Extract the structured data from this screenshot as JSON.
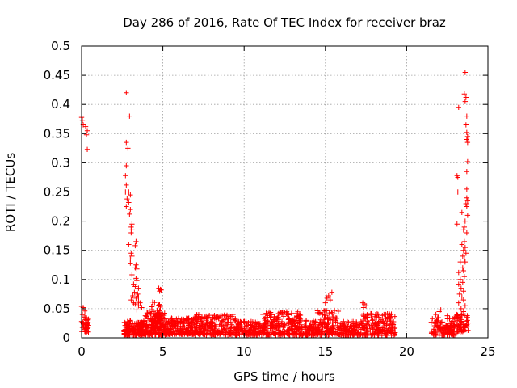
{
  "chart_data": {
    "type": "scatter",
    "title": "Day 286 of 2016, Rate Of TEC Index for receiver braz",
    "xlabel": "GPS time / hours",
    "ylabel": "ROTI / TECUs",
    "xlim": [
      0,
      25
    ],
    "ylim": [
      0,
      0.5
    ],
    "grid": true,
    "xticks": [
      0,
      5,
      10,
      15,
      20,
      25
    ],
    "xtick_labels": [
      "0",
      "5",
      "10",
      "15",
      "20",
      "25"
    ],
    "yticks": [
      0,
      0.05,
      0.1,
      0.15,
      0.2,
      0.25,
      0.3,
      0.35,
      0.4,
      0.45,
      0.5
    ],
    "ytick_labels": [
      "0",
      "0.05",
      "0.1",
      "0.15",
      "0.2",
      "0.25",
      "0.3",
      "0.35",
      "0.4",
      "0.45",
      "0.5"
    ],
    "series": [
      {
        "name": "ROTI",
        "color": "#ff0000",
        "marker": "plus",
        "points": [
          [
            0.0,
            0.378
          ],
          [
            0.05,
            0.373
          ],
          [
            0.1,
            0.365
          ],
          [
            0.25,
            0.362
          ],
          [
            0.35,
            0.355
          ],
          [
            0.3,
            0.348
          ],
          [
            0.35,
            0.323
          ],
          [
            0.0,
            0.054
          ],
          [
            0.1,
            0.052
          ],
          [
            0.2,
            0.046
          ],
          [
            0.05,
            0.04
          ],
          [
            0.15,
            0.035
          ],
          [
            0.3,
            0.03
          ],
          [
            0.0,
            0.028
          ],
          [
            0.1,
            0.025
          ],
          [
            0.2,
            0.022
          ],
          [
            0.35,
            0.024
          ],
          [
            0.4,
            0.018
          ],
          [
            0.25,
            0.012
          ],
          [
            2.75,
            0.42
          ],
          [
            2.95,
            0.38
          ],
          [
            2.75,
            0.335
          ],
          [
            2.85,
            0.325
          ],
          [
            2.75,
            0.295
          ],
          [
            2.7,
            0.278
          ],
          [
            2.75,
            0.262
          ],
          [
            2.7,
            0.25
          ],
          [
            2.9,
            0.25
          ],
          [
            3.0,
            0.245
          ],
          [
            2.8,
            0.238
          ],
          [
            2.9,
            0.232
          ],
          [
            2.75,
            0.225
          ],
          [
            3.0,
            0.22
          ],
          [
            2.95,
            0.212
          ],
          [
            3.1,
            0.195
          ],
          [
            3.05,
            0.19
          ],
          [
            3.1,
            0.185
          ],
          [
            3.05,
            0.18
          ],
          [
            3.35,
            0.165
          ],
          [
            3.3,
            0.158
          ],
          [
            2.9,
            0.16
          ],
          [
            3.05,
            0.145
          ],
          [
            3.1,
            0.14
          ],
          [
            3.0,
            0.135
          ],
          [
            3.0,
            0.128
          ],
          [
            3.35,
            0.125
          ],
          [
            3.3,
            0.12
          ],
          [
            3.4,
            0.118
          ],
          [
            3.1,
            0.108
          ],
          [
            3.35,
            0.102
          ],
          [
            3.4,
            0.098
          ],
          [
            3.2,
            0.092
          ],
          [
            3.3,
            0.088
          ],
          [
            3.5,
            0.085
          ],
          [
            3.25,
            0.078
          ],
          [
            3.45,
            0.075
          ],
          [
            3.15,
            0.072
          ],
          [
            3.35,
            0.068
          ],
          [
            3.5,
            0.062
          ],
          [
            3.6,
            0.06
          ],
          [
            3.3,
            0.058
          ],
          [
            3.5,
            0.055
          ],
          [
            3.7,
            0.052
          ],
          [
            3.4,
            0.048
          ],
          [
            3.2,
            0.06
          ],
          [
            3.05,
            0.065
          ],
          [
            3.5,
            0.07
          ],
          [
            4.75,
            0.085
          ],
          [
            4.85,
            0.083
          ],
          [
            4.8,
            0.08
          ],
          [
            4.9,
            0.082
          ],
          [
            15.05,
            0.07
          ],
          [
            15.1,
            0.068
          ],
          [
            15.2,
            0.072
          ],
          [
            15.4,
            0.078
          ],
          [
            15.3,
            0.065
          ],
          [
            15.0,
            0.06
          ],
          [
            17.3,
            0.06
          ],
          [
            17.4,
            0.058
          ],
          [
            17.5,
            0.055
          ],
          [
            17.35,
            0.052
          ],
          [
            23.6,
            0.455
          ],
          [
            23.55,
            0.418
          ],
          [
            23.65,
            0.412
          ],
          [
            23.6,
            0.405
          ],
          [
            23.2,
            0.395
          ],
          [
            23.7,
            0.38
          ],
          [
            23.65,
            0.365
          ],
          [
            23.7,
            0.352
          ],
          [
            23.75,
            0.345
          ],
          [
            23.7,
            0.34
          ],
          [
            23.75,
            0.335
          ],
          [
            23.75,
            0.302
          ],
          [
            23.7,
            0.285
          ],
          [
            23.1,
            0.278
          ],
          [
            23.15,
            0.275
          ],
          [
            23.7,
            0.255
          ],
          [
            23.15,
            0.25
          ],
          [
            23.7,
            0.24
          ],
          [
            23.75,
            0.235
          ],
          [
            23.65,
            0.23
          ],
          [
            23.7,
            0.225
          ],
          [
            23.4,
            0.215
          ],
          [
            23.75,
            0.21
          ],
          [
            23.6,
            0.2
          ],
          [
            23.1,
            0.195
          ],
          [
            23.55,
            0.19
          ],
          [
            23.5,
            0.185
          ],
          [
            23.7,
            0.18
          ],
          [
            23.55,
            0.165
          ],
          [
            23.4,
            0.16
          ],
          [
            23.6,
            0.155
          ],
          [
            23.5,
            0.15
          ],
          [
            23.65,
            0.145
          ],
          [
            23.45,
            0.14
          ],
          [
            23.55,
            0.135
          ],
          [
            23.6,
            0.13
          ],
          [
            23.3,
            0.13
          ],
          [
            23.45,
            0.12
          ],
          [
            23.5,
            0.115
          ],
          [
            23.2,
            0.112
          ],
          [
            23.55,
            0.105
          ],
          [
            23.3,
            0.1
          ],
          [
            23.45,
            0.095
          ],
          [
            23.2,
            0.092
          ],
          [
            23.35,
            0.085
          ],
          [
            23.5,
            0.08
          ],
          [
            23.25,
            0.075
          ],
          [
            23.4,
            0.07
          ],
          [
            23.5,
            0.065
          ],
          [
            23.2,
            0.06
          ],
          [
            23.6,
            0.055
          ],
          [
            23.35,
            0.05
          ],
          [
            23.5,
            0.045
          ],
          [
            23.4,
            0.04
          ],
          [
            23.6,
            0.038
          ],
          [
            22.0,
            0.045
          ],
          [
            22.1,
            0.048
          ],
          [
            21.8,
            0.04
          ],
          [
            22.5,
            0.038
          ]
        ],
        "bands": [
          {
            "x": [
              0.0,
              0.45
            ],
            "low": 0.01,
            "high": 0.035,
            "n": 30
          },
          {
            "x": [
              2.6,
              3.9
            ],
            "low": 0.005,
            "high": 0.03,
            "n": 160
          },
          {
            "x": [
              3.9,
              5.2
            ],
            "low": 0.005,
            "high": 0.045,
            "n": 180
          },
          {
            "x": [
              4.3,
              4.9
            ],
            "low": 0.02,
            "high": 0.062,
            "n": 40
          },
          {
            "x": [
              5.2,
              7.0
            ],
            "low": 0.006,
            "high": 0.035,
            "n": 180
          },
          {
            "x": [
              7.0,
              9.5
            ],
            "low": 0.005,
            "high": 0.04,
            "n": 230
          },
          {
            "x": [
              9.5,
              11.0
            ],
            "low": 0.004,
            "high": 0.028,
            "n": 140
          },
          {
            "x": [
              11.0,
              13.5
            ],
            "low": 0.005,
            "high": 0.045,
            "n": 230
          },
          {
            "x": [
              13.5,
              14.5
            ],
            "low": 0.004,
            "high": 0.03,
            "n": 90
          },
          {
            "x": [
              14.5,
              15.8
            ],
            "low": 0.005,
            "high": 0.048,
            "n": 120
          },
          {
            "x": [
              15.8,
              17.2
            ],
            "low": 0.004,
            "high": 0.028,
            "n": 110
          },
          {
            "x": [
              17.2,
              19.3
            ],
            "low": 0.004,
            "high": 0.042,
            "n": 180
          },
          {
            "x": [
              21.5,
              23.0
            ],
            "low": 0.004,
            "high": 0.035,
            "n": 120
          },
          {
            "x": [
              23.0,
              23.8
            ],
            "low": 0.01,
            "high": 0.04,
            "n": 60
          }
        ]
      }
    ]
  }
}
